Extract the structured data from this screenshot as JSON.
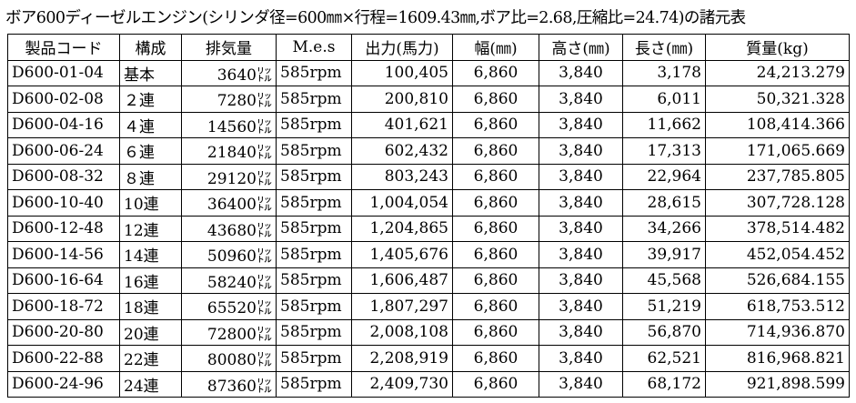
{
  "header": {
    "title": "ボア600ディーゼルエンジン(シリンダ径=600㎜×行程=1609.43㎜,ボア比=2.68,圧縮比=24.74)の諸元表"
  },
  "table": {
    "columns": [
      "製品コード",
      "構成",
      "排気量",
      "M.e.s",
      "出力(馬力)",
      "幅(㎜)",
      "高さ(㎜)",
      "長さ(㎜)",
      "質量(kg)"
    ],
    "rows": [
      [
        "D600-01-04",
        "基本",
        "3640㍑",
        "585rpm",
        "100,405",
        "6,860",
        "3,840",
        "3,178",
        "24,213.279"
      ],
      [
        "D600-02-08",
        "２連",
        "7280㍑",
        "585rpm",
        "200,810",
        "6,860",
        "3,840",
        "6,011",
        "50,321.328"
      ],
      [
        "D600-04-16",
        "４連",
        "14560㍑",
        "585rpm",
        "401,621",
        "6,860",
        "3,840",
        "11,662",
        "108,414.366"
      ],
      [
        "D600-06-24",
        "６連",
        "21840㍑",
        "585rpm",
        "602,432",
        "6,860",
        "3,840",
        "17,313",
        "171,065.669"
      ],
      [
        "D600-08-32",
        "８連",
        "29120㍑",
        "585rpm",
        "803,243",
        "6,860",
        "3,840",
        "22,964",
        "237,785.805"
      ],
      [
        "D600-10-40",
        "10連",
        "36400㍑",
        "585rpm",
        "1,004,054",
        "6,860",
        "3,840",
        "28,615",
        "307,728.128"
      ],
      [
        "D600-12-48",
        "12連",
        "43680㍑",
        "585rpm",
        "1,204,865",
        "6,860",
        "3,840",
        "34,266",
        "378,514.482"
      ],
      [
        "D600-14-56",
        "14連",
        "50960㍑",
        "585rpm",
        "1,405,676",
        "6,860",
        "3,840",
        "39,917",
        "452,054.452"
      ],
      [
        "D600-16-64",
        "16連",
        "58240㍑",
        "585rpm",
        "1,606,487",
        "6,860",
        "3,840",
        "45,568",
        "526,684.155"
      ],
      [
        "D600-18-72",
        "18連",
        "65520㍑",
        "585rpm",
        "1,807,297",
        "6,860",
        "3,840",
        "51,219",
        "618,753.512"
      ],
      [
        "D600-20-80",
        "20連",
        "72800㍑",
        "585rpm",
        "2,008,108",
        "6,860",
        "3,840",
        "56,870",
        "714,936.870"
      ],
      [
        "D600-22-88",
        "22連",
        "80080㍑",
        "585rpm",
        "2,208,919",
        "6,860",
        "3,840",
        "62,521",
        "816,968.821"
      ],
      [
        "D600-24-96",
        "24連",
        "87360㍑",
        "585rpm",
        "2,409,730",
        "6,860",
        "3,840",
        "68,172",
        "921,898.599"
      ]
    ]
  }
}
